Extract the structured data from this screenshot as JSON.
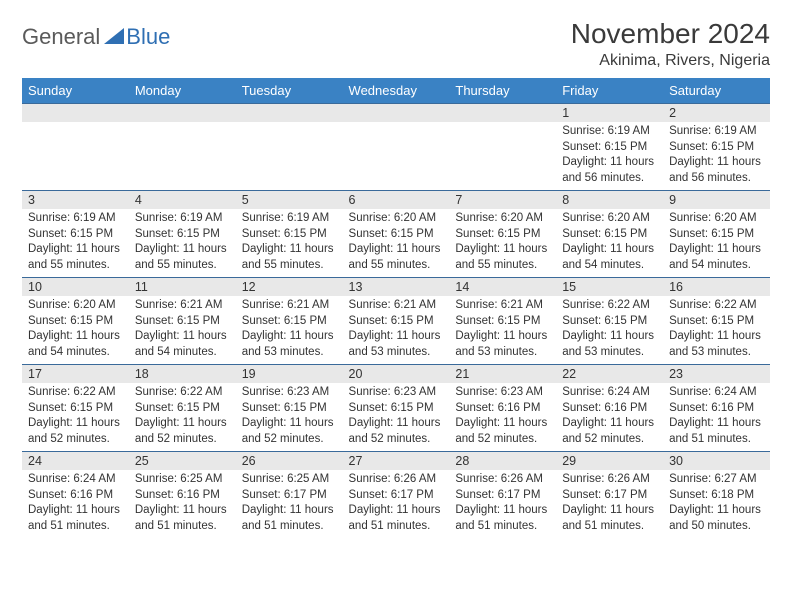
{
  "logo": {
    "general": "General",
    "blue": "Blue"
  },
  "title": "November 2024",
  "location": "Akinima, Rivers, Nigeria",
  "colors": {
    "header_bg": "#3a82c4",
    "header_text": "#ffffff",
    "cell_border": "#3a6a9a",
    "daynum_bg": "#e8e8e8",
    "text": "#333333",
    "logo_gray": "#5a5a5a",
    "logo_blue": "#2f6fb3",
    "background": "#ffffff"
  },
  "fonts": {
    "family": "Arial",
    "month_title_pt": 28,
    "location_pt": 16,
    "weekday_pt": 13,
    "daynum_pt": 12.5,
    "body_pt": 11.5
  },
  "layout": {
    "columns": 7,
    "rows": 5,
    "col_width_pct": 14.2857
  },
  "week_days": [
    "Sunday",
    "Monday",
    "Tuesday",
    "Wednesday",
    "Thursday",
    "Friday",
    "Saturday"
  ],
  "weeks": [
    [
      {
        "day": "",
        "sunrise": "",
        "sunset": "",
        "daylight": ""
      },
      {
        "day": "",
        "sunrise": "",
        "sunset": "",
        "daylight": ""
      },
      {
        "day": "",
        "sunrise": "",
        "sunset": "",
        "daylight": ""
      },
      {
        "day": "",
        "sunrise": "",
        "sunset": "",
        "daylight": ""
      },
      {
        "day": "",
        "sunrise": "",
        "sunset": "",
        "daylight": ""
      },
      {
        "day": "1",
        "sunrise": "Sunrise: 6:19 AM",
        "sunset": "Sunset: 6:15 PM",
        "daylight": "Daylight: 11 hours and 56 minutes."
      },
      {
        "day": "2",
        "sunrise": "Sunrise: 6:19 AM",
        "sunset": "Sunset: 6:15 PM",
        "daylight": "Daylight: 11 hours and 56 minutes."
      }
    ],
    [
      {
        "day": "3",
        "sunrise": "Sunrise: 6:19 AM",
        "sunset": "Sunset: 6:15 PM",
        "daylight": "Daylight: 11 hours and 55 minutes."
      },
      {
        "day": "4",
        "sunrise": "Sunrise: 6:19 AM",
        "sunset": "Sunset: 6:15 PM",
        "daylight": "Daylight: 11 hours and 55 minutes."
      },
      {
        "day": "5",
        "sunrise": "Sunrise: 6:19 AM",
        "sunset": "Sunset: 6:15 PM",
        "daylight": "Daylight: 11 hours and 55 minutes."
      },
      {
        "day": "6",
        "sunrise": "Sunrise: 6:20 AM",
        "sunset": "Sunset: 6:15 PM",
        "daylight": "Daylight: 11 hours and 55 minutes."
      },
      {
        "day": "7",
        "sunrise": "Sunrise: 6:20 AM",
        "sunset": "Sunset: 6:15 PM",
        "daylight": "Daylight: 11 hours and 55 minutes."
      },
      {
        "day": "8",
        "sunrise": "Sunrise: 6:20 AM",
        "sunset": "Sunset: 6:15 PM",
        "daylight": "Daylight: 11 hours and 54 minutes."
      },
      {
        "day": "9",
        "sunrise": "Sunrise: 6:20 AM",
        "sunset": "Sunset: 6:15 PM",
        "daylight": "Daylight: 11 hours and 54 minutes."
      }
    ],
    [
      {
        "day": "10",
        "sunrise": "Sunrise: 6:20 AM",
        "sunset": "Sunset: 6:15 PM",
        "daylight": "Daylight: 11 hours and 54 minutes."
      },
      {
        "day": "11",
        "sunrise": "Sunrise: 6:21 AM",
        "sunset": "Sunset: 6:15 PM",
        "daylight": "Daylight: 11 hours and 54 minutes."
      },
      {
        "day": "12",
        "sunrise": "Sunrise: 6:21 AM",
        "sunset": "Sunset: 6:15 PM",
        "daylight": "Daylight: 11 hours and 53 minutes."
      },
      {
        "day": "13",
        "sunrise": "Sunrise: 6:21 AM",
        "sunset": "Sunset: 6:15 PM",
        "daylight": "Daylight: 11 hours and 53 minutes."
      },
      {
        "day": "14",
        "sunrise": "Sunrise: 6:21 AM",
        "sunset": "Sunset: 6:15 PM",
        "daylight": "Daylight: 11 hours and 53 minutes."
      },
      {
        "day": "15",
        "sunrise": "Sunrise: 6:22 AM",
        "sunset": "Sunset: 6:15 PM",
        "daylight": "Daylight: 11 hours and 53 minutes."
      },
      {
        "day": "16",
        "sunrise": "Sunrise: 6:22 AM",
        "sunset": "Sunset: 6:15 PM",
        "daylight": "Daylight: 11 hours and 53 minutes."
      }
    ],
    [
      {
        "day": "17",
        "sunrise": "Sunrise: 6:22 AM",
        "sunset": "Sunset: 6:15 PM",
        "daylight": "Daylight: 11 hours and 52 minutes."
      },
      {
        "day": "18",
        "sunrise": "Sunrise: 6:22 AM",
        "sunset": "Sunset: 6:15 PM",
        "daylight": "Daylight: 11 hours and 52 minutes."
      },
      {
        "day": "19",
        "sunrise": "Sunrise: 6:23 AM",
        "sunset": "Sunset: 6:15 PM",
        "daylight": "Daylight: 11 hours and 52 minutes."
      },
      {
        "day": "20",
        "sunrise": "Sunrise: 6:23 AM",
        "sunset": "Sunset: 6:15 PM",
        "daylight": "Daylight: 11 hours and 52 minutes."
      },
      {
        "day": "21",
        "sunrise": "Sunrise: 6:23 AM",
        "sunset": "Sunset: 6:16 PM",
        "daylight": "Daylight: 11 hours and 52 minutes."
      },
      {
        "day": "22",
        "sunrise": "Sunrise: 6:24 AM",
        "sunset": "Sunset: 6:16 PM",
        "daylight": "Daylight: 11 hours and 52 minutes."
      },
      {
        "day": "23",
        "sunrise": "Sunrise: 6:24 AM",
        "sunset": "Sunset: 6:16 PM",
        "daylight": "Daylight: 11 hours and 51 minutes."
      }
    ],
    [
      {
        "day": "24",
        "sunrise": "Sunrise: 6:24 AM",
        "sunset": "Sunset: 6:16 PM",
        "daylight": "Daylight: 11 hours and 51 minutes."
      },
      {
        "day": "25",
        "sunrise": "Sunrise: 6:25 AM",
        "sunset": "Sunset: 6:16 PM",
        "daylight": "Daylight: 11 hours and 51 minutes."
      },
      {
        "day": "26",
        "sunrise": "Sunrise: 6:25 AM",
        "sunset": "Sunset: 6:17 PM",
        "daylight": "Daylight: 11 hours and 51 minutes."
      },
      {
        "day": "27",
        "sunrise": "Sunrise: 6:26 AM",
        "sunset": "Sunset: 6:17 PM",
        "daylight": "Daylight: 11 hours and 51 minutes."
      },
      {
        "day": "28",
        "sunrise": "Sunrise: 6:26 AM",
        "sunset": "Sunset: 6:17 PM",
        "daylight": "Daylight: 11 hours and 51 minutes."
      },
      {
        "day": "29",
        "sunrise": "Sunrise: 6:26 AM",
        "sunset": "Sunset: 6:17 PM",
        "daylight": "Daylight: 11 hours and 51 minutes."
      },
      {
        "day": "30",
        "sunrise": "Sunrise: 6:27 AM",
        "sunset": "Sunset: 6:18 PM",
        "daylight": "Daylight: 11 hours and 50 minutes."
      }
    ]
  ]
}
